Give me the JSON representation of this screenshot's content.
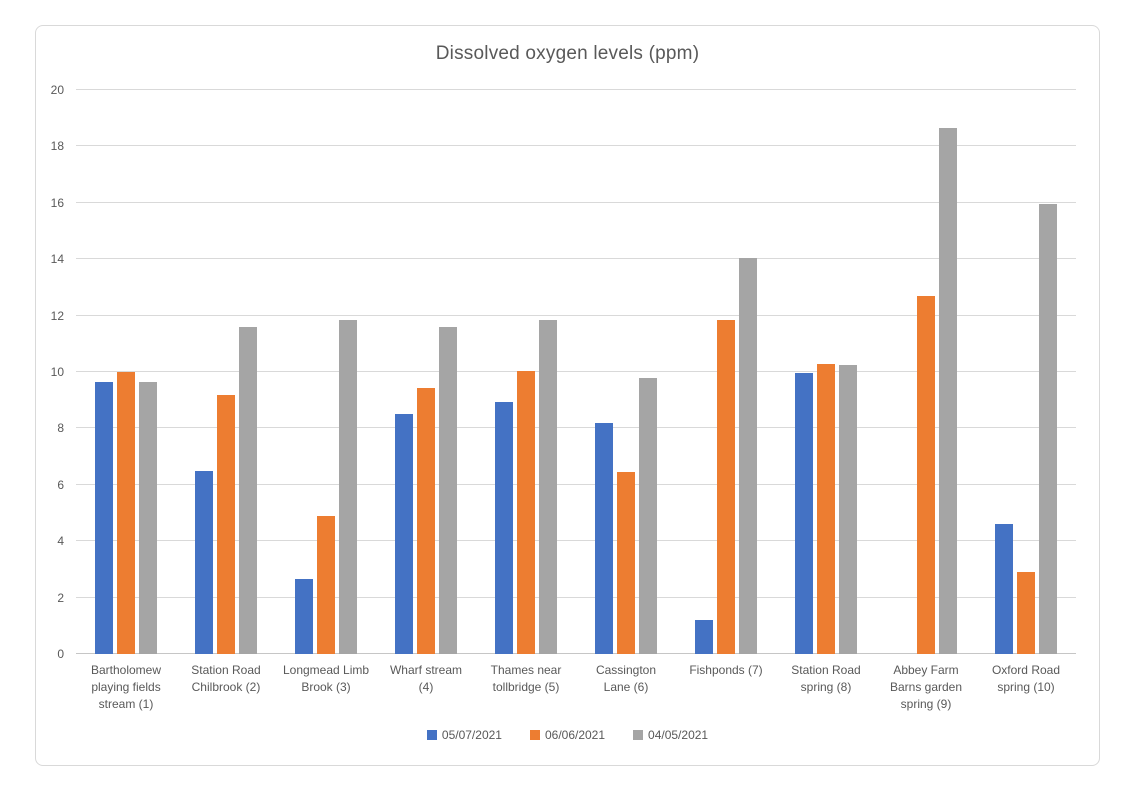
{
  "chart_data": {
    "type": "bar",
    "title": "Dissolved oxygen levels (ppm)",
    "categories": [
      "Bartholomew playing fields stream (1)",
      "Station Road Chilbrook (2)",
      "Longmead Limb Brook (3)",
      "Wharf stream (4)",
      "Thames near tollbridge (5)",
      "Cassington Lane (6)",
      "Fishponds (7)",
      "Station Road spring (8)",
      "Abbey Farm Barns garden spring (9)",
      "Oxford Road spring (10)"
    ],
    "series": [
      {
        "name": "05/07/2021",
        "color": "#4472C4",
        "values": [
          9.65,
          6.5,
          2.65,
          8.5,
          8.95,
          8.2,
          1.2,
          9.95,
          0,
          4.6
        ]
      },
      {
        "name": "06/06/2021",
        "color": "#ED7D31",
        "values": [
          10.0,
          9.2,
          4.9,
          9.45,
          10.05,
          6.45,
          11.85,
          10.3,
          12.7,
          2.9
        ]
      },
      {
        "name": "04/05/2021",
        "color": "#A5A5A5",
        "values": [
          9.65,
          11.6,
          11.85,
          11.6,
          11.85,
          9.8,
          14.05,
          10.25,
          18.65,
          15.95
        ]
      }
    ],
    "ylim": [
      0,
      20
    ],
    "ytick_step": 2,
    "grid": true,
    "legend_position": "bottom",
    "colors": {
      "gridline": "#D9D9D9",
      "axis_text": "#595959",
      "title_text": "#595959",
      "chart_border": "#D9D9D9"
    }
  }
}
